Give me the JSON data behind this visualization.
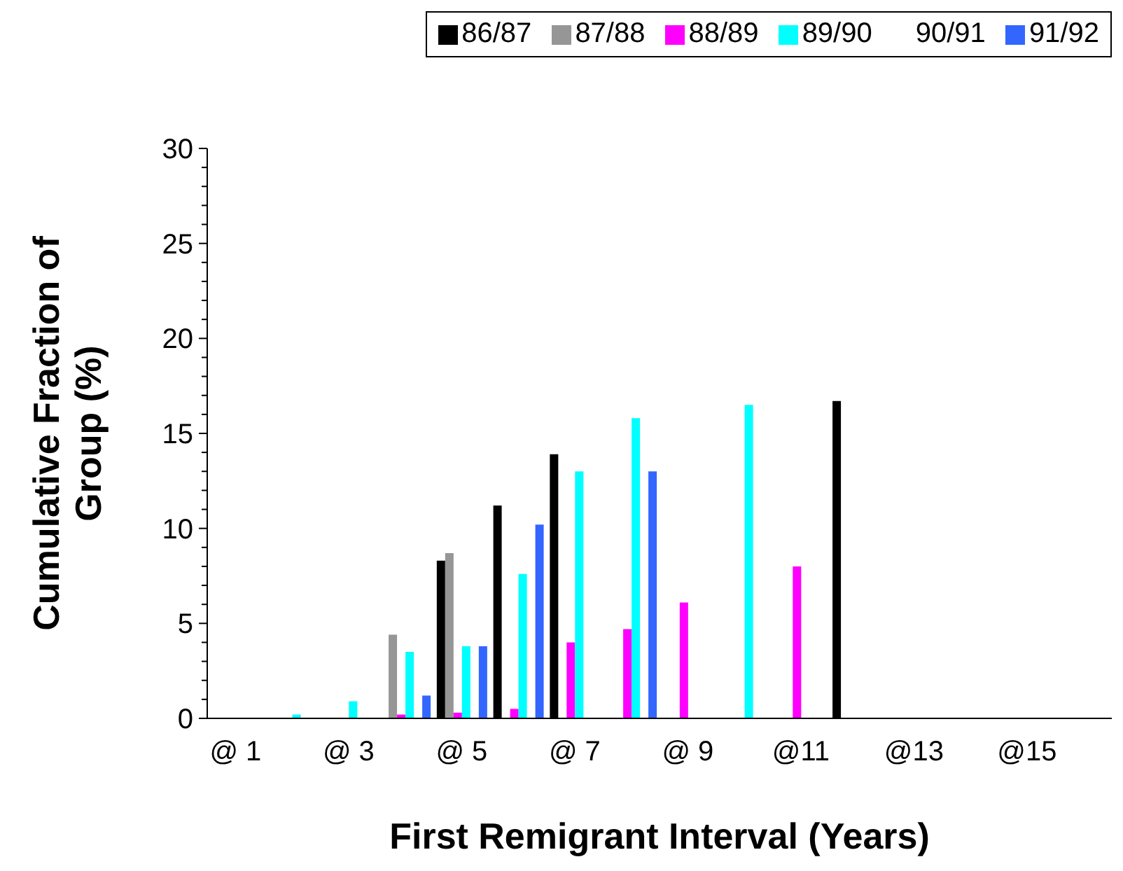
{
  "chart_data": {
    "type": "bar",
    "xlabel": "First Remigrant Interval (Years)",
    "ylabel": "Cumulative Fraction of Group (%)",
    "categories": [
      "@ 1",
      null,
      "@ 3",
      null,
      "@ 5",
      null,
      "@ 7",
      null,
      "@ 9",
      null,
      "@11",
      null,
      "@13",
      null,
      "@15",
      null
    ],
    "series": [
      {
        "name": "86/87",
        "color": "#000000",
        "values": [
          null,
          null,
          null,
          null,
          8.3,
          11.2,
          13.9,
          null,
          null,
          null,
          null,
          16.7,
          null,
          null,
          null,
          null
        ]
      },
      {
        "name": "87/88",
        "color": "#969696",
        "values": [
          null,
          null,
          null,
          4.4,
          8.7,
          null,
          null,
          null,
          null,
          null,
          null,
          null,
          null,
          null,
          null,
          null
        ]
      },
      {
        "name": "88/89",
        "color": "#ff00ff",
        "values": [
          null,
          null,
          null,
          0.2,
          0.3,
          0.5,
          4.0,
          4.7,
          6.1,
          null,
          8.0,
          null,
          null,
          null,
          null,
          null
        ]
      },
      {
        "name": "89/90",
        "color": "#00ffff",
        "values": [
          null,
          0.2,
          0.9,
          3.5,
          3.8,
          7.6,
          13.0,
          15.8,
          null,
          16.5,
          null,
          null,
          null,
          null,
          null,
          null
        ]
      },
      {
        "name": "90/91",
        "values": [
          null,
          null,
          null,
          null,
          null,
          null,
          null,
          null,
          null,
          null,
          null,
          null,
          null,
          null,
          null,
          null
        ]
      },
      {
        "name": "91/92",
        "color": "#3366ff",
        "values": [
          null,
          null,
          null,
          1.2,
          3.8,
          10.2,
          null,
          13.0,
          null,
          null,
          null,
          null,
          null,
          null,
          null,
          null
        ]
      }
    ],
    "ylim": [
      0,
      30
    ],
    "yticks": [
      0,
      {
        "value": 1,
        "label": null
      },
      {
        "value": 2,
        "label": null
      },
      {
        "value": 3,
        "label": null
      },
      {
        "value": 4,
        "label": null
      },
      5,
      {
        "value": 6,
        "label": null
      },
      {
        "value": 7,
        "label": null
      },
      {
        "value": 8,
        "label": null
      },
      {
        "value": 9,
        "label": null
      },
      10,
      {
        "value": 11,
        "label": null
      },
      {
        "value": 12,
        "label": null
      },
      {
        "value": 13,
        "label": null
      },
      {
        "value": 14,
        "label": null
      },
      15,
      {
        "value": 16,
        "label": null
      },
      {
        "value": 17,
        "label": null
      },
      {
        "value": 18,
        "label": null
      },
      {
        "value": 19,
        "label": null
      },
      20,
      {
        "value": 21,
        "label": null
      },
      {
        "value": 22,
        "label": null
      },
      {
        "value": 23,
        "label": null
      },
      {
        "value": 24,
        "label": null
      },
      25,
      {
        "value": 26,
        "label": null
      },
      {
        "value": 27,
        "label": null
      },
      {
        "value": 28,
        "label": null
      },
      {
        "value": 29,
        "label": null
      },
      30
    ],
    "grid": false,
    "legend": "top right"
  }
}
